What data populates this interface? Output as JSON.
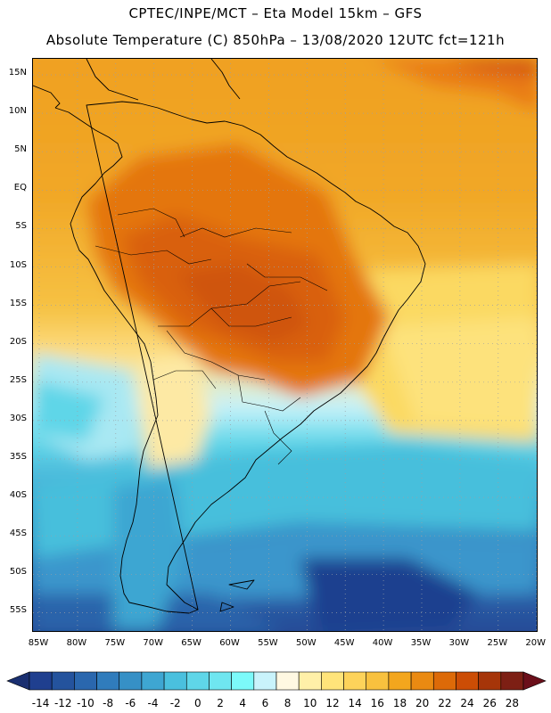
{
  "header": {
    "line1": "CPTEC/INPE/MCT –  Eta Model 15km – GFS",
    "line2": "Absolute Temperature (C) 850hPa – 13/08/2020 12UTC fct=121h"
  },
  "axes": {
    "lat_labels": [
      "15N",
      "10N",
      "5N",
      "EQ",
      "5S",
      "10S",
      "15S",
      "20S",
      "25S",
      "30S",
      "35S",
      "40S",
      "45S",
      "50S",
      "55S"
    ],
    "lon_labels": [
      "85W",
      "80W",
      "75W",
      "70W",
      "65W",
      "60W",
      "55W",
      "50W",
      "45W",
      "40W",
      "35W",
      "30W",
      "25W",
      "20W"
    ]
  },
  "colorbar": {
    "labels": [
      "-14",
      "-12",
      "-10",
      "-8",
      "-6",
      "-4",
      "-2",
      "0",
      "2",
      "4",
      "6",
      "8",
      "10",
      "12",
      "14",
      "16",
      "18",
      "20",
      "22",
      "24",
      "26",
      "28"
    ],
    "colors": [
      "#1f3f8f",
      "#24539d",
      "#2a67ae",
      "#307cbc",
      "#3690c6",
      "#3ea6d2",
      "#4ac0de",
      "#5fd6e8",
      "#6fe6f0",
      "#7cfafa",
      "#c9f3fb",
      "#fff8e2",
      "#fff0a8",
      "#ffe47a",
      "#fdd35a",
      "#f8c13e",
      "#f3a61d",
      "#ea8a12",
      "#dd6a08",
      "#cc4d05",
      "#a63509",
      "#7d1f14"
    ],
    "low_color": "#1a2f70",
    "high_color": "#6b0f1a"
  },
  "map": {
    "region": "South America",
    "variable": "Absolute Temperature 850hPa"
  }
}
